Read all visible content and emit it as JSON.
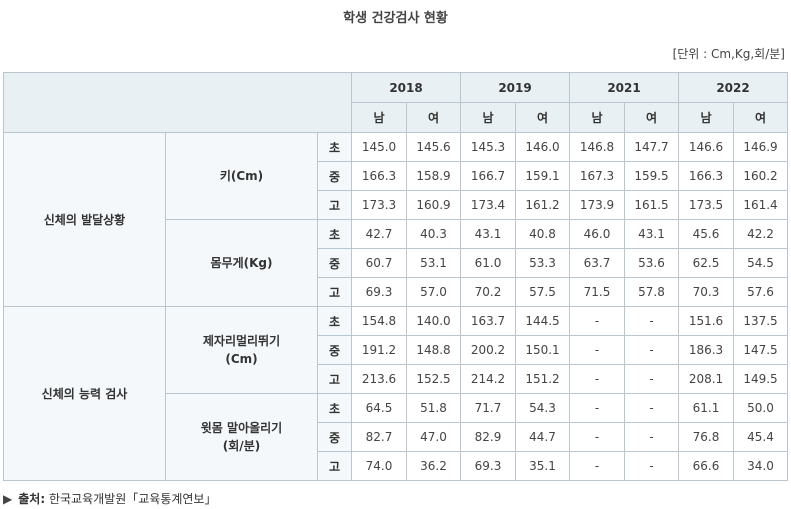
{
  "title": "학생 건강검사 현황",
  "unit": "[단위 : Cm,Kg,회/분]",
  "years": [
    "2018",
    "2019",
    "2021",
    "2022"
  ],
  "genders": [
    "남",
    "여",
    "남",
    "여",
    "남",
    "여",
    "남",
    "여"
  ],
  "groups": [
    {
      "label": "신체의 발달상황",
      "subs": [
        {
          "label": "키(Cm)",
          "rows": [
            {
              "level": "초",
              "values": [
                "145.0",
                "145.6",
                "145.3",
                "146.0",
                "146.8",
                "147.7",
                "146.6",
                "146.9"
              ]
            },
            {
              "level": "중",
              "values": [
                "166.3",
                "158.9",
                "166.7",
                "159.1",
                "167.3",
                "159.5",
                "166.3",
                "160.2"
              ]
            },
            {
              "level": "고",
              "values": [
                "173.3",
                "160.9",
                "173.4",
                "161.2",
                "173.9",
                "161.5",
                "173.5",
                "161.4"
              ]
            }
          ]
        },
        {
          "label": "몸무게(Kg)",
          "rows": [
            {
              "level": "초",
              "values": [
                "42.7",
                "40.3",
                "43.1",
                "40.8",
                "46.0",
                "43.1",
                "45.6",
                "42.2"
              ]
            },
            {
              "level": "중",
              "values": [
                "60.7",
                "53.1",
                "61.0",
                "53.3",
                "63.7",
                "53.6",
                "62.5",
                "54.5"
              ]
            },
            {
              "level": "고",
              "values": [
                "69.3",
                "57.0",
                "70.2",
                "57.5",
                "71.5",
                "57.8",
                "70.3",
                "57.6"
              ]
            }
          ]
        }
      ]
    },
    {
      "label": "신체의 능력 검사",
      "subs": [
        {
          "label": "제자리멀리뛰기",
          "label2": "(Cm)",
          "rows": [
            {
              "level": "초",
              "values": [
                "154.8",
                "140.0",
                "163.7",
                "144.5",
                "-",
                "-",
                "151.6",
                "137.5"
              ]
            },
            {
              "level": "중",
              "values": [
                "191.2",
                "148.8",
                "200.2",
                "150.1",
                "-",
                "-",
                "186.3",
                "147.5"
              ]
            },
            {
              "level": "고",
              "values": [
                "213.6",
                "152.5",
                "214.2",
                "151.2",
                "-",
                "-",
                "208.1",
                "149.5"
              ]
            }
          ]
        },
        {
          "label": "윗몸 말아올리기",
          "label2": "(회/분)",
          "rows": [
            {
              "level": "초",
              "values": [
                "64.5",
                "51.8",
                "71.7",
                "54.3",
                "-",
                "-",
                "61.1",
                "50.0"
              ]
            },
            {
              "level": "중",
              "values": [
                "82.7",
                "47.0",
                "82.9",
                "44.7",
                "-",
                "-",
                "76.8",
                "45.4"
              ]
            },
            {
              "level": "고",
              "values": [
                "74.0",
                "36.2",
                "69.3",
                "35.1",
                "-",
                "-",
                "66.6",
                "34.0"
              ]
            }
          ]
        }
      ]
    }
  ],
  "source": {
    "marker": "▶",
    "label": "출처:",
    "text": "한국교육개발원「교육통계연보」"
  }
}
